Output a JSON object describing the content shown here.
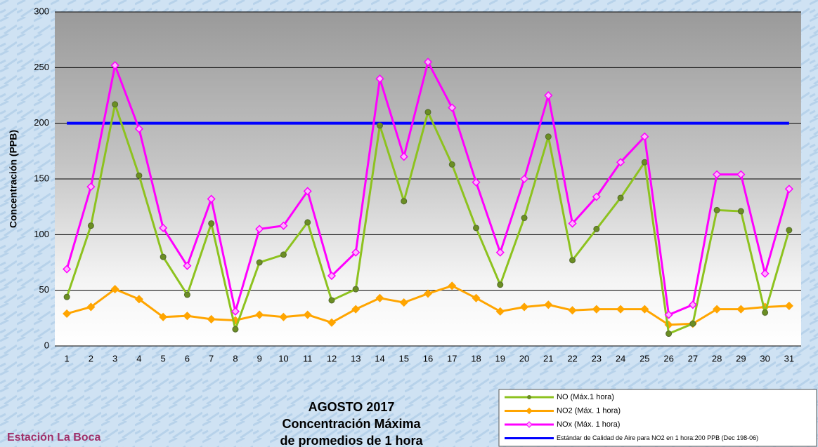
{
  "chart_data": {
    "type": "line",
    "title": [
      "AGOSTO 2017",
      "Concentración Máxima",
      "de promedios de 1 hora"
    ],
    "station": "Estación La Boca",
    "y_label": "Concentración  (PPB)",
    "categories": [
      "1",
      "2",
      "3",
      "4",
      "5",
      "6",
      "7",
      "8",
      "9",
      "10",
      "11",
      "12",
      "13",
      "14",
      "15",
      "16",
      "17",
      "18",
      "19",
      "20",
      "21",
      "22",
      "23",
      "24",
      "25",
      "26",
      "27",
      "28",
      "29",
      "30",
      "31"
    ],
    "ylim": [
      0,
      300
    ],
    "yticks": [
      0,
      50,
      100,
      150,
      200,
      250,
      300
    ],
    "grid": true,
    "series": [
      {
        "name": "NO (Máx.1 hora)",
        "color": "#8dc21f",
        "marker": "circle",
        "marker_color": "#6b8e23",
        "values": [
          44,
          108,
          217,
          153,
          80,
          46,
          110,
          15,
          75,
          82,
          111,
          41,
          51,
          198,
          130,
          210,
          163,
          106,
          55,
          115,
          188,
          77,
          105,
          133,
          165,
          11,
          20,
          122,
          121,
          30,
          104
        ]
      },
      {
        "name": "NO2 (Máx. 1 hora)",
        "color": "#ffa500",
        "marker": "diamond",
        "marker_color": "#ffa500",
        "values": [
          29,
          35,
          51,
          42,
          26,
          27,
          24,
          23,
          28,
          26,
          28,
          21,
          33,
          43,
          39,
          47,
          54,
          43,
          31,
          35,
          37,
          32,
          33,
          33,
          33,
          19,
          20,
          33,
          33,
          35,
          36
        ]
      },
      {
        "name": "NOx (Máx. 1 hora)",
        "color": "#ff00ff",
        "marker": "diamond",
        "marker_color": "#ffb3ff",
        "values": [
          69,
          143,
          252,
          195,
          106,
          72,
          132,
          31,
          105,
          108,
          139,
          63,
          84,
          240,
          170,
          255,
          214,
          147,
          84,
          150,
          225,
          110,
          134,
          165,
          188,
          28,
          37,
          154,
          154,
          65,
          141
        ]
      },
      {
        "name": "Estándar de Calidad de Aire para NO2 en 1 hora:200 PPB (Dec 198-06)",
        "color": "#0000ff",
        "marker": "none",
        "marker_color": "#0000ff",
        "values": [
          200,
          200,
          200,
          200,
          200,
          200,
          200,
          200,
          200,
          200,
          200,
          200,
          200,
          200,
          200,
          200,
          200,
          200,
          200,
          200,
          200,
          200,
          200,
          200,
          200,
          200,
          200,
          200,
          200,
          200,
          200
        ]
      }
    ]
  }
}
